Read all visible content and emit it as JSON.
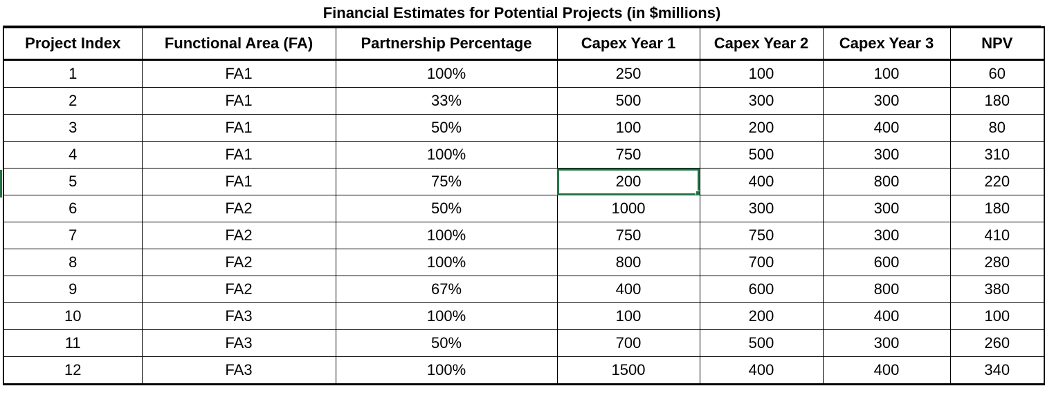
{
  "title": "Financial Estimates for Potential Projects (in $millions)",
  "columns": [
    "Project Index",
    "Functional Area (FA)",
    "Partnership Percentage",
    "Capex Year 1",
    "Capex Year 2",
    "Capex Year 3",
    "NPV"
  ],
  "rows": [
    [
      "1",
      "FA1",
      "100%",
      "250",
      "100",
      "100",
      "60"
    ],
    [
      "2",
      "FA1",
      "33%",
      "500",
      "300",
      "300",
      "180"
    ],
    [
      "3",
      "FA1",
      "50%",
      "100",
      "200",
      "400",
      "80"
    ],
    [
      "4",
      "FA1",
      "100%",
      "750",
      "500",
      "300",
      "310"
    ],
    [
      "5",
      "FA1",
      "75%",
      "200",
      "400",
      "800",
      "220"
    ],
    [
      "6",
      "FA2",
      "50%",
      "1000",
      "300",
      "300",
      "180"
    ],
    [
      "7",
      "FA2",
      "100%",
      "750",
      "750",
      "300",
      "410"
    ],
    [
      "8",
      "FA2",
      "100%",
      "800",
      "700",
      "600",
      "280"
    ],
    [
      "9",
      "FA2",
      "67%",
      "400",
      "600",
      "800",
      "380"
    ],
    [
      "10",
      "FA3",
      "100%",
      "100",
      "200",
      "400",
      "100"
    ],
    [
      "11",
      "FA3",
      "50%",
      "700",
      "500",
      "300",
      "260"
    ],
    [
      "12",
      "FA3",
      "100%",
      "1500",
      "400",
      "400",
      "340"
    ]
  ],
  "selected_cell": {
    "row": 4,
    "col": 3
  },
  "colors": {
    "selection": "#217346",
    "grid": "#000000",
    "background": "#ffffff"
  }
}
